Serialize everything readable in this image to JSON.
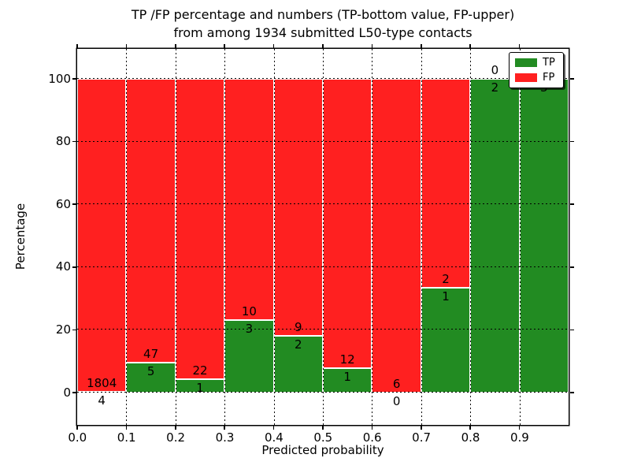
{
  "title": {
    "line1": "TP /FP percentage and numbers (TP-bottom value, FP-upper)",
    "line2": "from among 1934 submitted L50-type contacts"
  },
  "axes": {
    "ylabel": "Percentage",
    "xlabel": "Predicted probability",
    "ytick_labels": [
      "0",
      "20",
      "40",
      "60",
      "80",
      "100"
    ],
    "xtick_labels": [
      "0.0",
      "0.1",
      "0.2",
      "0.3",
      "0.4",
      "0.5",
      "0.6",
      "0.7",
      "0.8",
      "0.9"
    ]
  },
  "legend": [
    {
      "label": "TP",
      "color": "#228b22"
    },
    {
      "label": "FP",
      "color": "#ff2020"
    }
  ],
  "chart_data": {
    "type": "bar",
    "stacked": true,
    "normalized_to_percent": true,
    "title": "TP /FP percentage and numbers (TP-bottom value, FP-upper) from among 1934 submitted L50-type contacts",
    "xlabel": "Predicted probability",
    "ylabel": "Percentage",
    "bin_starts": [
      0.0,
      0.1,
      0.2,
      0.3,
      0.4,
      0.5,
      0.6,
      0.7,
      0.8,
      0.9
    ],
    "bin_width": 0.1,
    "series": [
      {
        "name": "TP",
        "color": "#228b22",
        "counts": [
          4,
          5,
          1,
          3,
          2,
          1,
          0,
          1,
          2,
          3
        ]
      },
      {
        "name": "FP",
        "color": "#ff2020",
        "counts": [
          1804,
          47,
          22,
          10,
          9,
          12,
          6,
          2,
          0,
          0
        ]
      }
    ],
    "tp_percent_heights": [
      0.22,
      9.62,
      4.35,
      23.08,
      18.18,
      7.69,
      0.0,
      33.33,
      100.0,
      100.0
    ],
    "total_contacts": 1934,
    "xlim": [
      0.0,
      1.0
    ],
    "ylim": [
      -10,
      110
    ],
    "yticks": [
      0,
      20,
      40,
      60,
      80,
      100
    ],
    "xticks": [
      0.0,
      0.1,
      0.2,
      0.3,
      0.4,
      0.5,
      0.6,
      0.7,
      0.8,
      0.9
    ],
    "grid": true,
    "grid_style": "dotted",
    "legend_position": "upper right"
  }
}
